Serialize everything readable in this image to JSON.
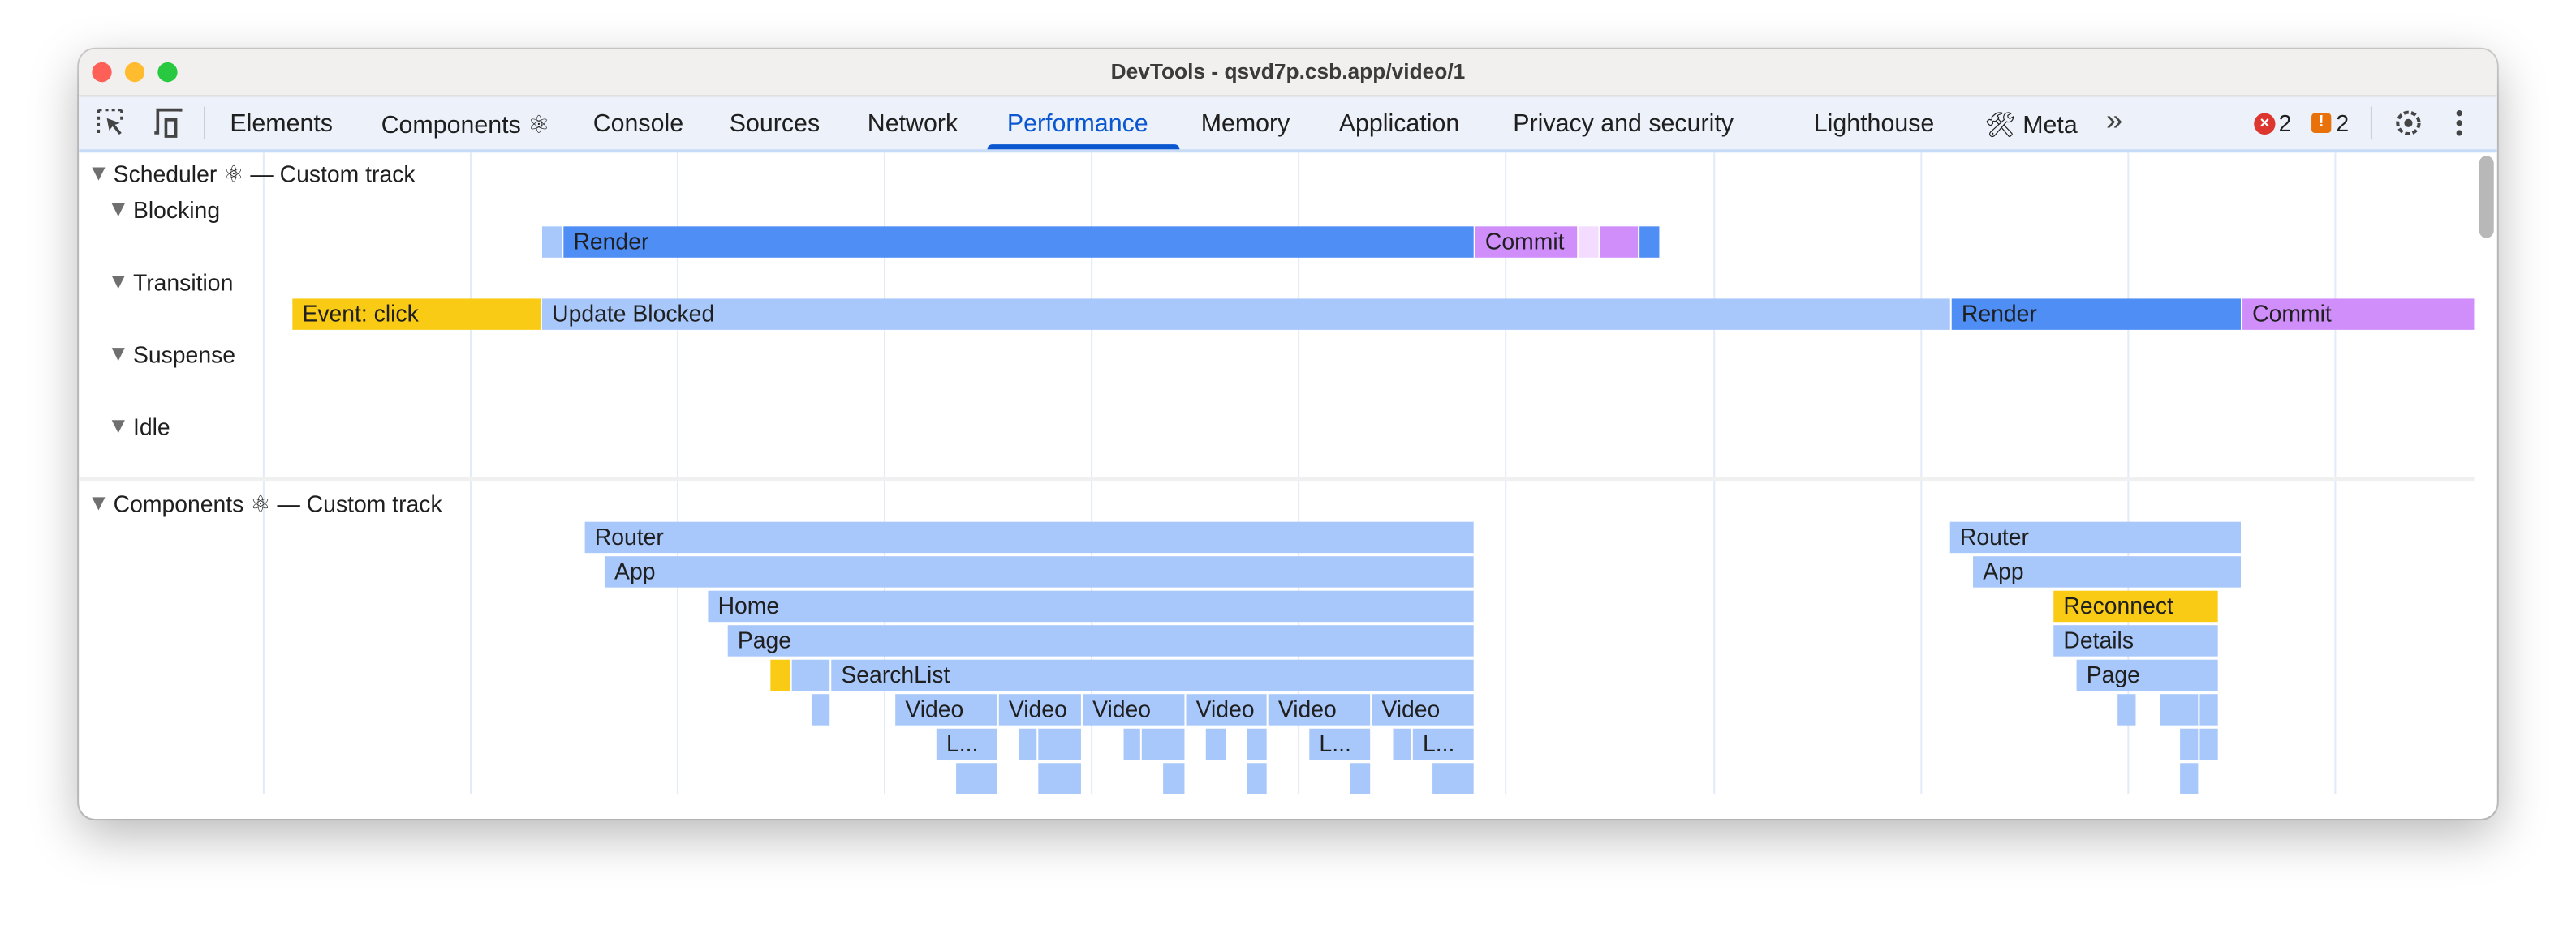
{
  "window": {
    "title": "DevTools - qsvd7p.csb.app/video/1"
  },
  "toolbar": {
    "tabs": [
      {
        "label": "Elements"
      },
      {
        "label": "Components ⚛"
      },
      {
        "label": "Console"
      },
      {
        "label": "Sources"
      },
      {
        "label": "Network"
      },
      {
        "label": "Performance",
        "active": true
      },
      {
        "label": "Memory"
      },
      {
        "label": "Application"
      },
      {
        "label": "Privacy and security"
      },
      {
        "label": "Lighthouse"
      },
      {
        "label": "🛠 Meta"
      }
    ],
    "more_label": "»",
    "errors_count": "2",
    "warnings_count": "2",
    "accent": "#0b57d0"
  },
  "scheduler": {
    "track_title": "Scheduler ⚛ — Custom track",
    "lanes": {
      "blocking": "Blocking",
      "transition": "Transition",
      "suspense": "Suspense",
      "idle": "Idle"
    },
    "blocking_bars": [
      {
        "label": "",
        "kind": "light"
      },
      {
        "label": "Render",
        "kind": "render"
      },
      {
        "label": "Commit",
        "kind": "commit"
      },
      {
        "label": "",
        "kind": "pale"
      },
      {
        "label": "",
        "kind": "commit"
      },
      {
        "label": "",
        "kind": "render"
      }
    ],
    "transition_bars": [
      {
        "label": "Event: click",
        "kind": "event"
      },
      {
        "label": "Update Blocked",
        "kind": "light"
      },
      {
        "label": "Render",
        "kind": "render"
      },
      {
        "label": "Commit",
        "kind": "commit"
      }
    ]
  },
  "components": {
    "track_title": "Components ⚛ — Custom track",
    "bars": [
      {
        "label": "Router",
        "kind": "light"
      },
      {
        "label": "App",
        "kind": "light"
      },
      {
        "label": "Home",
        "kind": "light"
      },
      {
        "label": "Page",
        "kind": "light"
      },
      {
        "label": "",
        "kind": "event"
      },
      {
        "label": "",
        "kind": "light"
      },
      {
        "label": "SearchList",
        "kind": "light"
      },
      {
        "label": "",
        "kind": "light"
      },
      {
        "label": "Video",
        "kind": "light"
      },
      {
        "label": "Video",
        "kind": "light"
      },
      {
        "label": "Video",
        "kind": "light"
      },
      {
        "label": "Video",
        "kind": "light"
      },
      {
        "label": "Video",
        "kind": "light"
      },
      {
        "label": "Video",
        "kind": "light"
      },
      {
        "label": "L...",
        "kind": "light"
      },
      {
        "label": "",
        "kind": "light"
      },
      {
        "label": "",
        "kind": "light"
      },
      {
        "label": "",
        "kind": "light"
      },
      {
        "label": "",
        "kind": "light"
      },
      {
        "label": "",
        "kind": "light"
      },
      {
        "label": "",
        "kind": "light"
      },
      {
        "label": "L...",
        "kind": "light"
      },
      {
        "label": "",
        "kind": "light"
      },
      {
        "label": "L...",
        "kind": "light"
      },
      {
        "label": "",
        "kind": "light"
      },
      {
        "label": "",
        "kind": "light"
      },
      {
        "label": "",
        "kind": "light"
      },
      {
        "label": "",
        "kind": "light"
      },
      {
        "label": "",
        "kind": "light"
      },
      {
        "label": "",
        "kind": "light"
      },
      {
        "label": "Router",
        "kind": "light"
      },
      {
        "label": "App",
        "kind": "light"
      },
      {
        "label": "Reconnect",
        "kind": "event"
      },
      {
        "label": "Details",
        "kind": "light"
      },
      {
        "label": "Page",
        "kind": "light"
      },
      {
        "label": "",
        "kind": "light"
      },
      {
        "label": "",
        "kind": "light"
      },
      {
        "label": "",
        "kind": "light"
      },
      {
        "label": "",
        "kind": "light"
      },
      {
        "label": "",
        "kind": "light"
      },
      {
        "label": "",
        "kind": "light"
      }
    ]
  },
  "colors": {
    "light": "#a8c7fa",
    "render": "#4e8ef5",
    "commit": "#d08efb",
    "pale": "#f3dcff",
    "event": "#facb15"
  }
}
